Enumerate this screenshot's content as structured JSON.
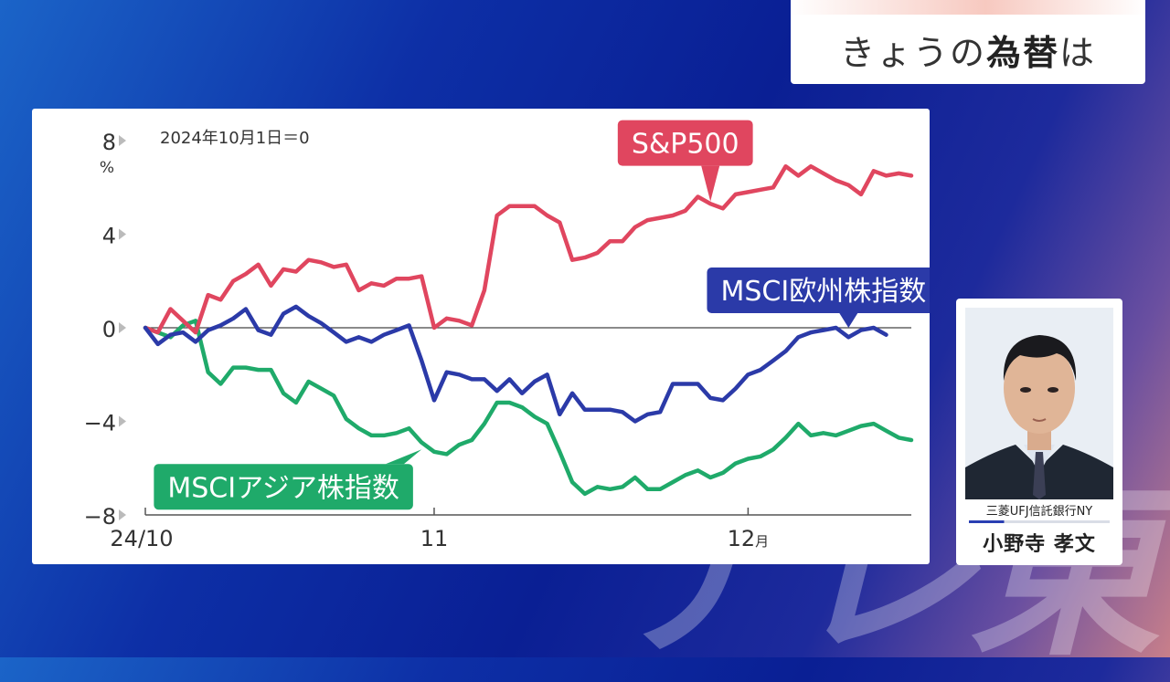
{
  "title": {
    "prefix": "きょうの",
    "emphasis": "為替",
    "suffix": "は"
  },
  "watermark": "テレ東",
  "chart_data": {
    "type": "line",
    "note": "2024年10月1日＝0",
    "ylabel": "%",
    "ylim": [
      -8,
      8
    ],
    "yticks": [
      8,
      4,
      0,
      -4,
      -8
    ],
    "x_range": [
      0,
      61
    ],
    "xticks": [
      {
        "x": 0,
        "label": "24/10"
      },
      {
        "x": 23,
        "label": "11"
      },
      {
        "x": 48,
        "label": "12月"
      }
    ],
    "grid": false,
    "series": [
      {
        "name": "S&P500",
        "color": "#e0465f",
        "label_pos": [
          43,
          7.9
        ],
        "pointer_to": [
          45,
          5.4
        ],
        "x": [
          0,
          1,
          2,
          3,
          4,
          5,
          6,
          7,
          8,
          9,
          10,
          11,
          12,
          13,
          14,
          15,
          16,
          17,
          18,
          19,
          20,
          21,
          22,
          23,
          24,
          25,
          26,
          27,
          28,
          29,
          30,
          31,
          32,
          33,
          34,
          35,
          36,
          37,
          38,
          39,
          40,
          41,
          42,
          43,
          44,
          45,
          46,
          47,
          48,
          49,
          50,
          51,
          52,
          53,
          54,
          55,
          56,
          57,
          58,
          59,
          60,
          61
        ],
        "values": [
          0,
          -0.2,
          0.8,
          0.3,
          -0.2,
          1.4,
          1.2,
          2.0,
          2.3,
          2.7,
          1.8,
          2.5,
          2.4,
          2.9,
          2.8,
          2.6,
          2.7,
          1.6,
          1.9,
          1.8,
          2.1,
          2.1,
          2.2,
          0,
          0.4,
          0.3,
          0.1,
          1.6,
          4.8,
          5.2,
          5.2,
          5.2,
          4.8,
          4.5,
          2.9,
          3.0,
          3.2,
          3.7,
          3.7,
          4.3,
          4.6,
          4.7,
          4.8,
          5.0,
          5.6,
          5.3,
          5.1,
          5.7,
          5.8,
          5.9,
          6.0,
          6.9,
          6.5,
          6.9,
          6.6,
          6.3,
          6.1,
          5.7,
          6.7,
          6.5,
          6.6,
          6.5
        ]
      },
      {
        "name": "MSCI欧州株指数",
        "color": "#2b3aa8",
        "label_pos": [
          54,
          1.6
        ],
        "pointer_to": [
          56,
          0
        ],
        "x": [
          0,
          1,
          2,
          3,
          4,
          5,
          6,
          7,
          8,
          9,
          10,
          11,
          12,
          13,
          14,
          15,
          16,
          17,
          18,
          19,
          20,
          21,
          22,
          23,
          24,
          25,
          26,
          27,
          28,
          29,
          30,
          31,
          32,
          33,
          34,
          35,
          36,
          37,
          38,
          39,
          40,
          41,
          42,
          43,
          44,
          45,
          46,
          47,
          48,
          49,
          50,
          51,
          52,
          53,
          54,
          55,
          56,
          57,
          58,
          59
        ],
        "values": [
          0,
          -0.7,
          -0.3,
          -0.2,
          -0.6,
          -0.1,
          0.1,
          0.4,
          0.8,
          -0.1,
          -0.3,
          0.6,
          0.9,
          0.5,
          0.2,
          -0.2,
          -0.6,
          -0.4,
          -0.6,
          -0.3,
          -0.1,
          0.1,
          -1.4,
          -3.1,
          -1.9,
          -2.0,
          -2.2,
          -2.2,
          -2.7,
          -2.2,
          -2.8,
          -2.3,
          -2.0,
          -3.7,
          -2.8,
          -3.5,
          -3.5,
          -3.5,
          -3.6,
          -4.0,
          -3.7,
          -3.6,
          -2.4,
          -2.4,
          -2.4,
          -3.0,
          -3.1,
          -2.6,
          -2.0,
          -1.8,
          -1.4,
          -1.0,
          -0.4,
          -0.2,
          -0.1,
          0,
          -0.4,
          -0.1,
          0,
          -0.3
        ]
      },
      {
        "name": "MSCIアジア株指数",
        "color": "#1faa6a",
        "label_pos": [
          11,
          -6.8
        ],
        "pointer_to": [
          22,
          -5.2
        ],
        "x": [
          0,
          1,
          2,
          3,
          4,
          5,
          6,
          7,
          8,
          9,
          10,
          11,
          12,
          13,
          14,
          15,
          16,
          17,
          18,
          19,
          20,
          21,
          22,
          23,
          24,
          25,
          26,
          27,
          28,
          29,
          30,
          31,
          32,
          33,
          34,
          35,
          36,
          37,
          38,
          39,
          40,
          41,
          42,
          43,
          44,
          45,
          46,
          47,
          48,
          49,
          50,
          51,
          52,
          53,
          54,
          55,
          56,
          57,
          58,
          59,
          60,
          61
        ],
        "values": [
          0,
          -0.2,
          -0.4,
          0.1,
          0.3,
          -1.9,
          -2.4,
          -1.7,
          -1.7,
          -1.8,
          -1.8,
          -2.8,
          -3.2,
          -2.3,
          -2.6,
          -2.9,
          -3.9,
          -4.3,
          -4.6,
          -4.6,
          -4.5,
          -4.3,
          -4.9,
          -5.3,
          -5.4,
          -5.0,
          -4.8,
          -4.1,
          -3.2,
          -3.2,
          -3.4,
          -3.8,
          -4.1,
          -5.3,
          -6.6,
          -7.1,
          -6.8,
          -6.9,
          -6.8,
          -6.4,
          -6.9,
          -6.9,
          -6.6,
          -6.3,
          -6.1,
          -6.4,
          -6.2,
          -5.8,
          -5.6,
          -5.5,
          -5.2,
          -4.7,
          -4.1,
          -4.6,
          -4.5,
          -4.6,
          -4.4,
          -4.2,
          -4.1,
          -4.4,
          -4.7,
          -4.8
        ]
      }
    ]
  },
  "person": {
    "organization": "三菱UFJ信託銀行NY",
    "name": "小野寺 孝文"
  }
}
